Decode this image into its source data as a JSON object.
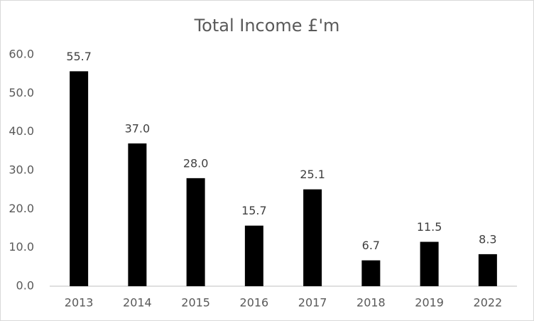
{
  "chart_data": {
    "type": "bar",
    "title": "Total Income £'m",
    "categories": [
      "2013",
      "2014",
      "2015",
      "2016",
      "2017",
      "2018",
      "2019",
      "2022"
    ],
    "values": [
      55.7,
      37.0,
      28.0,
      15.7,
      25.1,
      6.7,
      11.5,
      8.3
    ],
    "value_labels": [
      "55.7",
      "37.0",
      "28.0",
      "15.7",
      "25.1",
      "6.7",
      "11.5",
      "8.3"
    ],
    "color": "#000000",
    "ylim": [
      0,
      60
    ],
    "yticks": [
      {
        "value": 0,
        "label": "0.0"
      },
      {
        "value": 10,
        "label": "10.0"
      },
      {
        "value": 20,
        "label": "20.0"
      },
      {
        "value": 30,
        "label": "30.0"
      },
      {
        "value": 40,
        "label": "40.0"
      },
      {
        "value": 50,
        "label": "50.0"
      },
      {
        "value": 60,
        "label": "60.0"
      }
    ],
    "grid": false
  }
}
